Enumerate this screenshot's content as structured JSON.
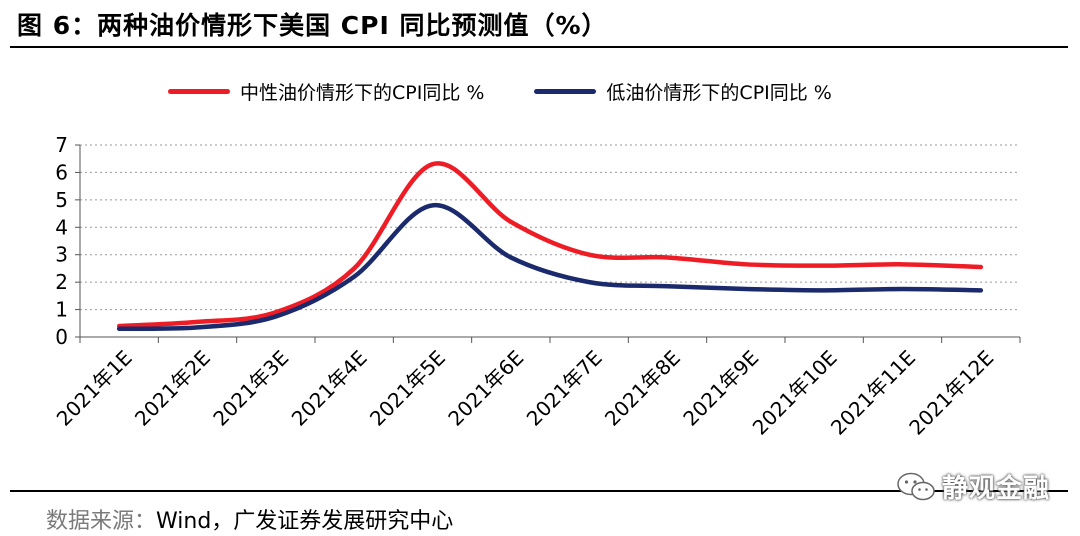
{
  "header": {
    "title": "图 6：两种油价情形下美国 CPI 同比预测值（%）"
  },
  "footer": {
    "source_label": "数据来源：",
    "source_text": "Wind，广发证券发展研究中心",
    "watermark": "静观金融"
  },
  "colors": {
    "series_high": "#ee1c25",
    "series_low": "#1a2a6c"
  },
  "chart_data": {
    "type": "line",
    "title": "两种油价情形下美国 CPI 同比预测值（%）",
    "xlabel": "",
    "ylabel": "",
    "ylim": [
      0,
      7
    ],
    "yticks": [
      "0",
      "1",
      "2",
      "3",
      "4",
      "5",
      "6",
      "7"
    ],
    "grid": true,
    "legend_position": "top",
    "categories": [
      "2021年1E",
      "2021年2E",
      "2021年3E",
      "2021年4E",
      "2021年5E",
      "2021年6E",
      "2021年7E",
      "2021年8E",
      "2021年9E",
      "2021年10E",
      "2021年11E",
      "2021年12E"
    ],
    "series": [
      {
        "name": "中性油价情形下的CPI同比 %",
        "color": "#ee1c25",
        "values": [
          0.4,
          0.55,
          0.9,
          2.5,
          6.3,
          4.2,
          3.0,
          2.9,
          2.65,
          2.6,
          2.65,
          2.55
        ]
      },
      {
        "name": "低油价情形下的CPI同比 %",
        "color": "#1a2a6c",
        "values": [
          0.3,
          0.35,
          0.75,
          2.2,
          4.8,
          2.9,
          2.0,
          1.85,
          1.75,
          1.7,
          1.75,
          1.7
        ]
      }
    ]
  }
}
